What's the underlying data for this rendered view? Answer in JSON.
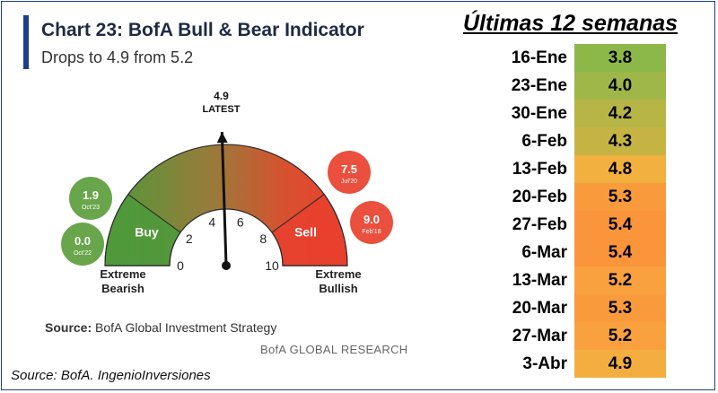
{
  "chart_title": "Chart 23: BofA Bull & Bear Indicator",
  "chart_subtitle": "Drops to 4.9 from 5.2",
  "source_label": "Source:",
  "source_text": "BofA Global Investment Strategy",
  "brand": "BofA GLOBAL RESEARCH",
  "footer": "Source: BofA. IngenioInversiones",
  "weeks_title": "Últimas 12 semanas",
  "colors": {
    "brand_blue": "#1b3f8b",
    "bull_green": "#5c9e3c",
    "bear_red": "#e8412d"
  },
  "chart_data": [
    {
      "type": "gauge",
      "title": "Chart 23: BofA Bull & Bear Indicator",
      "subtitle": "Drops to 4.9 from 5.2",
      "range": [
        0,
        10
      ],
      "ticks": [
        0,
        2,
        4,
        6,
        8,
        10
      ],
      "value": 4.9,
      "pointer_label": "LATEST",
      "zones": [
        {
          "name": "Buy",
          "from": 0,
          "to": 2
        },
        {
          "name": "Sell",
          "from": 8,
          "to": 10
        }
      ],
      "end_labels": {
        "left": "Extreme\nBearish",
        "right": "Extreme\nBullish"
      },
      "left_end": [
        "Extreme",
        "Bearish"
      ],
      "right_end": [
        "Extreme",
        "Bullish"
      ],
      "markers": [
        {
          "value": "1.9",
          "date": "Oct'23",
          "color": "#5c9e3c"
        },
        {
          "value": "0.0",
          "date": "Oct'22",
          "color": "#5c9e3c"
        },
        {
          "value": "7.5",
          "date": "Jul'20",
          "color": "#e8412d"
        },
        {
          "value": "9.0",
          "date": "Feb'18",
          "color": "#e8412d"
        }
      ]
    },
    {
      "type": "table",
      "title": "Últimas 12 semanas",
      "rows": [
        {
          "date": "16-Ene",
          "value": "3.8",
          "color": "#8cb84a"
        },
        {
          "date": "23-Ene",
          "value": "4.0",
          "color": "#9fb748"
        },
        {
          "date": "30-Ene",
          "value": "4.2",
          "color": "#b6b545"
        },
        {
          "date": "6-Feb",
          "value": "4.3",
          "color": "#c5b444"
        },
        {
          "date": "13-Feb",
          "value": "4.8",
          "color": "#f2b13f"
        },
        {
          "date": "20-Feb",
          "value": "5.3",
          "color": "#f99a3d"
        },
        {
          "date": "27-Feb",
          "value": "5.4",
          "color": "#fa953c"
        },
        {
          "date": "6-Mar",
          "value": "5.4",
          "color": "#fa953c"
        },
        {
          "date": "13-Mar",
          "value": "5.2",
          "color": "#f9a13e"
        },
        {
          "date": "20-Mar",
          "value": "5.3",
          "color": "#f99a3d"
        },
        {
          "date": "27-Mar",
          "value": "5.2",
          "color": "#f9a13e"
        },
        {
          "date": "3-Abr",
          "value": "4.9",
          "color": "#f4ae3f"
        }
      ]
    }
  ]
}
